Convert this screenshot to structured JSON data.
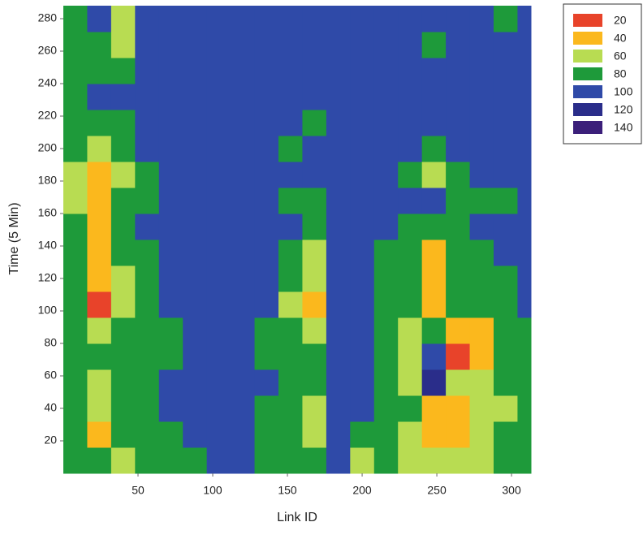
{
  "chart_data": {
    "type": "heatmap",
    "xlabel": "Link ID",
    "ylabel": "Time (5 Min)",
    "xlim": [
      0,
      313
    ],
    "ylim": [
      0,
      289
    ],
    "xticks": [
      50,
      100,
      150,
      200,
      250,
      300
    ],
    "yticks": [
      20,
      40,
      60,
      80,
      100,
      120,
      140,
      160,
      180,
      200,
      220,
      240,
      260,
      280
    ],
    "x_edges": [
      0,
      16,
      32,
      48,
      64,
      80,
      96,
      112,
      128,
      144,
      160,
      176,
      192,
      208,
      224,
      240,
      256,
      272,
      288,
      304,
      313
    ],
    "y_edges": [
      0,
      16,
      32,
      48,
      64,
      80,
      96,
      112,
      128,
      144,
      160,
      176,
      192,
      208,
      224,
      240,
      256,
      272,
      288
    ],
    "values": [
      [
        80,
        75,
        70,
        80,
        85,
        90,
        95,
        95,
        85,
        80,
        90,
        100,
        70,
        75,
        65,
        55,
        60,
        70,
        75,
        80
      ],
      [
        80,
        50,
        75,
        85,
        90,
        95,
        100,
        95,
        90,
        75,
        60,
        100,
        90,
        80,
        70,
        35,
        45,
        60,
        75,
        90
      ],
      [
        75,
        65,
        75,
        85,
        95,
        100,
        100,
        100,
        90,
        80,
        65,
        100,
        100,
        85,
        75,
        45,
        40,
        55,
        70,
        85
      ],
      [
        80,
        70,
        80,
        85,
        95,
        100,
        100,
        95,
        95,
        85,
        80,
        100,
        100,
        85,
        65,
        115,
        55,
        60,
        75,
        85
      ],
      [
        85,
        75,
        80,
        80,
        85,
        95,
        100,
        100,
        90,
        90,
        90,
        100,
        100,
        85,
        70,
        110,
        30,
        45,
        75,
        80
      ],
      [
        80,
        55,
        75,
        85,
        90,
        95,
        100,
        100,
        90,
        85,
        70,
        100,
        100,
        85,
        70,
        80,
        45,
        50,
        80,
        90
      ],
      [
        75,
        30,
        70,
        85,
        95,
        100,
        100,
        100,
        95,
        60,
        35,
        100,
        100,
        85,
        75,
        40,
        75,
        80,
        90,
        95
      ],
      [
        85,
        40,
        70,
        85,
        95,
        100,
        100,
        100,
        95,
        80,
        55,
        100,
        100,
        80,
        75,
        35,
        80,
        85,
        90,
        100
      ],
      [
        80,
        45,
        80,
        90,
        100,
        100,
        100,
        100,
        100,
        85,
        60,
        100,
        100,
        85,
        75,
        50,
        85,
        90,
        95,
        100
      ],
      [
        75,
        40,
        80,
        95,
        100,
        100,
        100,
        100,
        100,
        95,
        90,
        100,
        100,
        95,
        90,
        85,
        90,
        95,
        100,
        100
      ],
      [
        70,
        45,
        80,
        90,
        100,
        100,
        100,
        100,
        100,
        90,
        75,
        100,
        100,
        100,
        100,
        100,
        90,
        85,
        90,
        100
      ],
      [
        60,
        40,
        70,
        90,
        100,
        100,
        100,
        100,
        100,
        95,
        95,
        100,
        100,
        100,
        90,
        70,
        80,
        95,
        100,
        100
      ],
      [
        75,
        70,
        80,
        95,
        100,
        100,
        100,
        100,
        100,
        90,
        95,
        100,
        100,
        100,
        95,
        90,
        95,
        100,
        100,
        100
      ],
      [
        80,
        75,
        85,
        100,
        100,
        100,
        100,
        100,
        100,
        95,
        90,
        100,
        100,
        100,
        100,
        100,
        100,
        100,
        100,
        95
      ],
      [
        90,
        95,
        95,
        100,
        100,
        100,
        100,
        100,
        100,
        100,
        95,
        100,
        100,
        100,
        100,
        95,
        100,
        100,
        100,
        100
      ],
      [
        85,
        90,
        85,
        100,
        100,
        100,
        100,
        100,
        100,
        100,
        100,
        100,
        100,
        100,
        95,
        100,
        100,
        100,
        100,
        100
      ],
      [
        80,
        90,
        60,
        95,
        100,
        100,
        100,
        100,
        100,
        100,
        100,
        100,
        100,
        100,
        95,
        90,
        100,
        100,
        100,
        100
      ],
      [
        85,
        95,
        60,
        100,
        100,
        100,
        100,
        100,
        100,
        100,
        100,
        100,
        100,
        100,
        100,
        100,
        100,
        100,
        90,
        100
      ]
    ],
    "legend_levels": [
      20,
      40,
      60,
      80,
      100,
      120,
      140
    ],
    "legend_colors": [
      "#e8432a",
      "#fbb81d",
      "#b8dc52",
      "#1e9a3a",
      "#2f4aa8",
      "#2a2d8a",
      "#3b1f7a"
    ],
    "legend_position": "right"
  }
}
